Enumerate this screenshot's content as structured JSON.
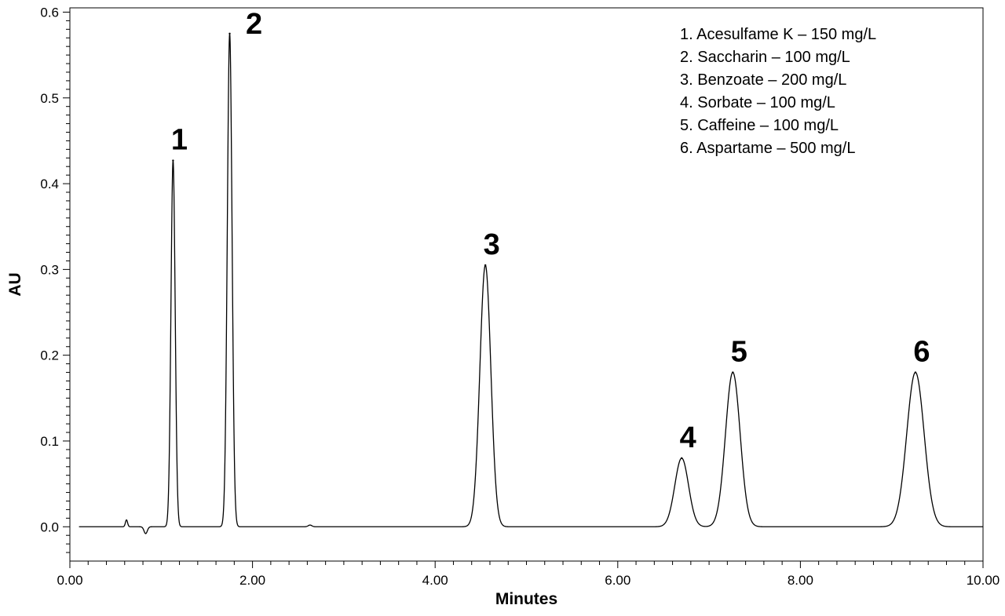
{
  "chart_data": {
    "type": "line",
    "xlabel": "Minutes",
    "ylabel": "AU",
    "xlim": [
      0,
      10
    ],
    "ylim": [
      -0.04,
      0.605
    ],
    "x_ticks": [
      {
        "value": 0,
        "label": "0.00"
      },
      {
        "value": 2,
        "label": "2.00"
      },
      {
        "value": 4,
        "label": "4.00"
      },
      {
        "value": 6,
        "label": "6.00"
      },
      {
        "value": 8,
        "label": "8.00"
      },
      {
        "value": 10,
        "label": "10.00"
      }
    ],
    "y_ticks": [
      {
        "value": 0.0,
        "label": "0.0"
      },
      {
        "value": 0.1,
        "label": "0.1"
      },
      {
        "value": 0.2,
        "label": "0.2"
      },
      {
        "value": 0.3,
        "label": "0.3"
      },
      {
        "value": 0.4,
        "label": "0.4"
      },
      {
        "value": 0.5,
        "label": "0.5"
      },
      {
        "value": 0.6,
        "label": "0.6"
      }
    ],
    "grid": false,
    "legend_position": "top-right",
    "line_color": "#000000",
    "peaks": [
      {
        "label": "1",
        "time": 1.13,
        "height": 0.427,
        "width": 0.023
      },
      {
        "label": "2",
        "time": 1.75,
        "height": 0.575,
        "width": 0.026
      },
      {
        "label": "3",
        "time": 4.55,
        "height": 0.305,
        "width": 0.06
      },
      {
        "label": "4",
        "time": 6.7,
        "height": 0.08,
        "width": 0.075
      },
      {
        "label": "5",
        "time": 7.26,
        "height": 0.18,
        "width": 0.08
      },
      {
        "label": "6",
        "time": 9.26,
        "height": 0.18,
        "width": 0.095
      }
    ],
    "baseline_features": [
      {
        "time": 0.62,
        "height": 0.008,
        "width": 0.012
      },
      {
        "time": 0.83,
        "height": -0.008,
        "width": 0.018
      },
      {
        "time": 2.63,
        "height": 0.002,
        "width": 0.02
      }
    ],
    "legend": [
      "1. Acesulfame K – 150 mg/L",
      "2. Saccharin – 100 mg/L",
      "3. Benzoate – 200 mg/L",
      "4. Sorbate – 100 mg/L",
      "5. Caffeine – 100 mg/L",
      "6. Aspartame – 500 mg/L"
    ]
  }
}
